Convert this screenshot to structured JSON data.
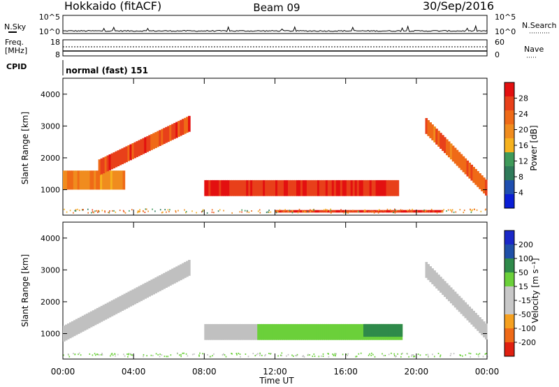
{
  "header": {
    "title": "Hokkaido (fitACF)",
    "beam": "Beam 09",
    "date": "30/Sep/2016"
  },
  "noise_panel": {
    "left_label": "N.Sky",
    "right_label": "N.Search",
    "left_ticks": [
      "10^5",
      "10^0"
    ],
    "right_ticks": [
      "10^5",
      "10^0"
    ]
  },
  "freq_panel": {
    "left_label_1": "Freq.",
    "left_label_2": "[MHz]",
    "right_label": "Nave",
    "left_ticks": [
      "18",
      "8"
    ],
    "right_ticks": [
      "60",
      "0"
    ],
    "freq_value_mhz": 11,
    "nave_value": 40
  },
  "cpid": {
    "label": "CPID",
    "text": "normal (fast) 151"
  },
  "colors": {
    "power_scale": [
      "#0a1ed6",
      "#1f4fb0",
      "#2f7a5a",
      "#3f9a5a",
      "#f6b21f",
      "#f08c1e",
      "#ef6a17",
      "#e8401a",
      "#e31010"
    ],
    "velocity_scale": [
      "#1a28c8",
      "#1f50a8",
      "#2f8a4a",
      "#6bd03a",
      "#c8c8c8",
      "#c8c8c8",
      "#f5a020",
      "#ef6a17",
      "#e02010"
    ],
    "ground_scatter": "#c0c0c0"
  },
  "chart_data": [
    {
      "type": "heatmap",
      "name": "power",
      "ylabel": "Slant Range [km]",
      "y_ticks": [
        "1000",
        "2000",
        "3000",
        "4000"
      ],
      "ylim": [
        200,
        4500
      ],
      "colorbar_label": "Power [dB]",
      "colorbar_ticks": [
        "4",
        "8",
        "12",
        "16",
        "20",
        "24",
        "28"
      ],
      "features": [
        {
          "t_start": 0.0,
          "t_end": 3.5,
          "range_start": 1000,
          "range_end": 1600,
          "value": 20
        },
        {
          "t_start": 2.0,
          "t_end": 7.2,
          "range_start": 1700,
          "range_end": 3100,
          "value": 26
        },
        {
          "t_start": 8.0,
          "t_end": 19.0,
          "range_start": 800,
          "range_end": 1300,
          "value": 28
        },
        {
          "t_start": 12.0,
          "t_end": 21.5,
          "range_start": 280,
          "range_end": 360,
          "value": 28
        },
        {
          "t_start": 20.5,
          "t_end": 24.0,
          "range_start": 1000,
          "range_end": 3000,
          "value": 24
        }
      ]
    },
    {
      "type": "heatmap",
      "name": "velocity",
      "ylabel": "Slant Range [km]",
      "y_ticks": [
        "1000",
        "2000",
        "3000",
        "4000"
      ],
      "ylim": [
        200,
        4500
      ],
      "colorbar_label": "Velocity [m s⁻¹]",
      "colorbar_ticks": [
        "200",
        "100",
        "50",
        "15",
        "-15",
        "-50",
        "-100",
        "-200"
      ],
      "features": [
        {
          "t_start": 0.0,
          "t_end": 7.2,
          "range_start": 1000,
          "range_end": 3100,
          "value": 0
        },
        {
          "t_start": 8.0,
          "t_end": 11.0,
          "range_start": 800,
          "range_end": 1300,
          "value": 0
        },
        {
          "t_start": 11.0,
          "t_end": 19.2,
          "range_start": 800,
          "range_end": 1300,
          "value": 30
        },
        {
          "t_start": 17.0,
          "t_end": 19.2,
          "range_start": 900,
          "range_end": 1300,
          "value": 80
        },
        {
          "t_start": 20.5,
          "t_end": 24.0,
          "range_start": 1000,
          "range_end": 3000,
          "value": 0
        }
      ]
    }
  ],
  "x_axis": {
    "label": "Time UT",
    "ticks": [
      "00:00",
      "04:00",
      "08:00",
      "12:00",
      "16:00",
      "20:00",
      "00:00"
    ]
  }
}
